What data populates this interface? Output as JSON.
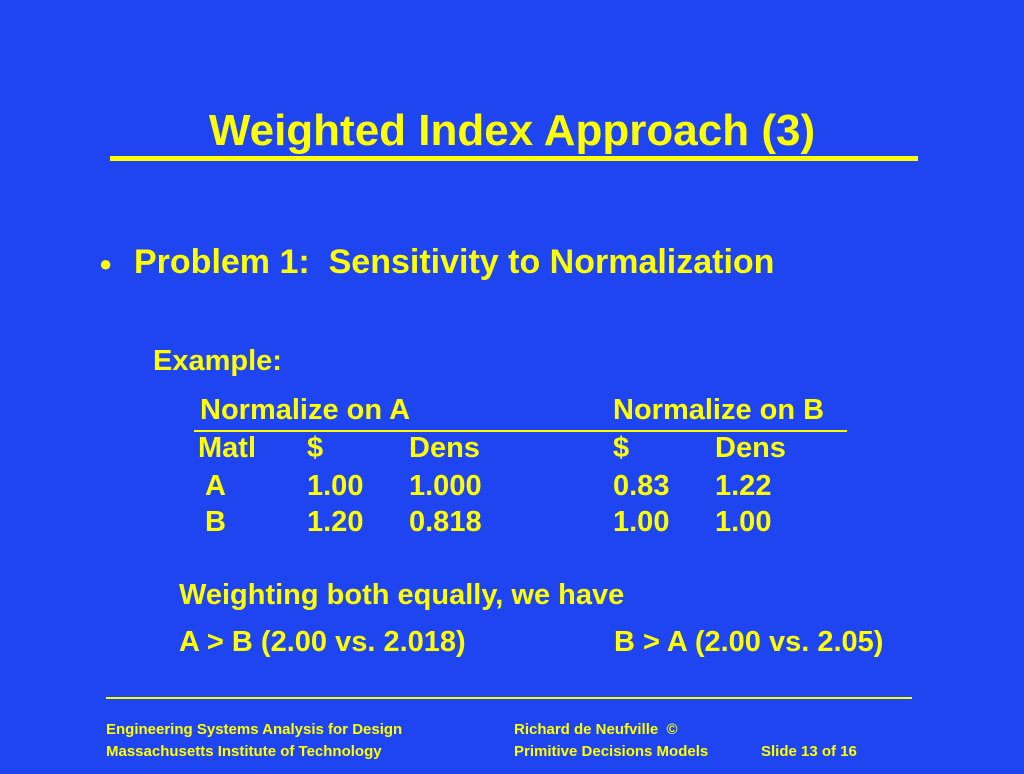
{
  "slide": {
    "title": "Weighted Index Approach (3)",
    "bullet_symbol": "●",
    "bullet_text": "Problem 1:  Sensitivity to Normalization",
    "example_label": "Example:"
  },
  "table": {
    "group_a": "Normalize on A",
    "group_b": "Normalize on B",
    "col_matl": "Matl",
    "col_dollar_a": "$",
    "col_dens_a": "Dens",
    "col_dollar_b": "$",
    "col_dens_b": "Dens",
    "rows": [
      {
        "matl": "A",
        "dollar_a": "1.00",
        "dens_a": "1.000",
        "dollar_b": "0.83",
        "dens_b": "1.22"
      },
      {
        "matl": "B",
        "dollar_a": "1.20",
        "dens_a": "0.818",
        "dollar_b": "1.00",
        "dens_b": "1.00"
      }
    ]
  },
  "conclusion": {
    "line1": "Weighting both equally, we have",
    "result_a": "A > B (2.00 vs. 2.018)",
    "result_b": "B > A (2.00 vs. 2.05)"
  },
  "footer": {
    "left_line1": "Engineering Systems Analysis for Design",
    "left_line2": "Massachusetts Institute of Technology",
    "right_line1": "Richard de Neufville  ©",
    "right_line2": "Primitive Decisions Models",
    "slide_number": "Slide 13 of 16"
  }
}
